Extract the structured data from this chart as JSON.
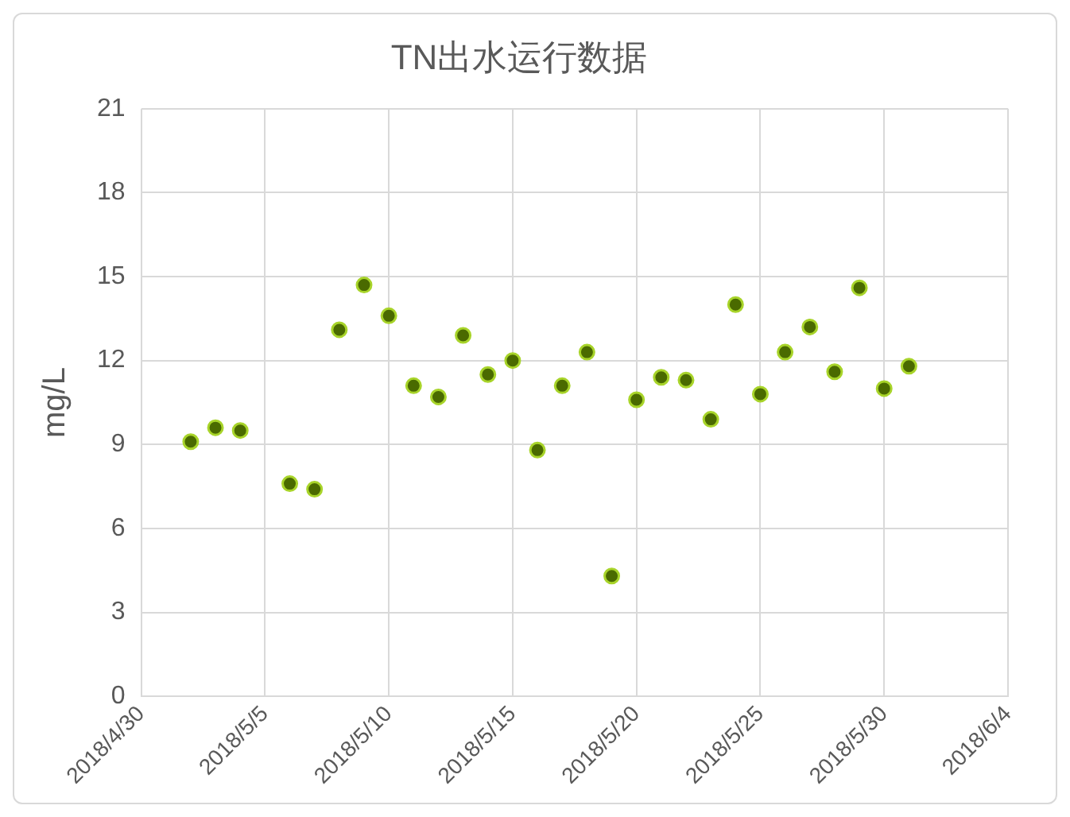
{
  "chart_data": {
    "type": "scatter",
    "title": "TN出水运行数据",
    "ylabel": "mg/L",
    "x": [
      "2018-05-02",
      "2018-05-03",
      "2018-05-04",
      "2018-05-06",
      "2018-05-07",
      "2018-05-08",
      "2018-05-09",
      "2018-05-10",
      "2018-05-11",
      "2018-05-12",
      "2018-05-13",
      "2018-05-14",
      "2018-05-15",
      "2018-05-16",
      "2018-05-17",
      "2018-05-18",
      "2018-05-19",
      "2018-05-20",
      "2018-05-21",
      "2018-05-22",
      "2018-05-23",
      "2018-05-24",
      "2018-05-25",
      "2018-05-26",
      "2018-05-27",
      "2018-05-28",
      "2018-05-29",
      "2018-05-30",
      "2018-05-31"
    ],
    "series": [
      {
        "color": "#4a6a00",
        "values": [
          9.1,
          9.6,
          9.5,
          7.6,
          7.4,
          13.1,
          14.7,
          13.6,
          11.1,
          10.7,
          12.9,
          11.5,
          12.0,
          8.8,
          11.1,
          12.3,
          4.3,
          10.6,
          11.4,
          11.3,
          9.9,
          14.0,
          10.8,
          12.3,
          13.2,
          11.6,
          14.6,
          11.0,
          11.8
        ]
      }
    ],
    "xlim": [
      "2018-04-30",
      "2018-06-04"
    ],
    "xticks": [
      {
        "value": "2018-04-30",
        "label": "2018/4/30"
      },
      {
        "value": "2018-05-05",
        "label": "2018/5/5"
      },
      {
        "value": "2018-05-10",
        "label": "2018/5/10"
      },
      {
        "value": "2018-05-15",
        "label": "2018/5/15"
      },
      {
        "value": "2018-05-20",
        "label": "2018/5/20"
      },
      {
        "value": "2018-05-25",
        "label": "2018/5/25"
      },
      {
        "value": "2018-05-30",
        "label": "2018/5/30"
      },
      {
        "value": "2018-06-04",
        "label": "2018/6/4"
      }
    ],
    "ylim": [
      0,
      21
    ],
    "yticks": [
      0,
      3,
      6,
      9,
      12,
      15,
      18,
      21
    ],
    "grid": true,
    "marker": "circle",
    "legend": false
  }
}
